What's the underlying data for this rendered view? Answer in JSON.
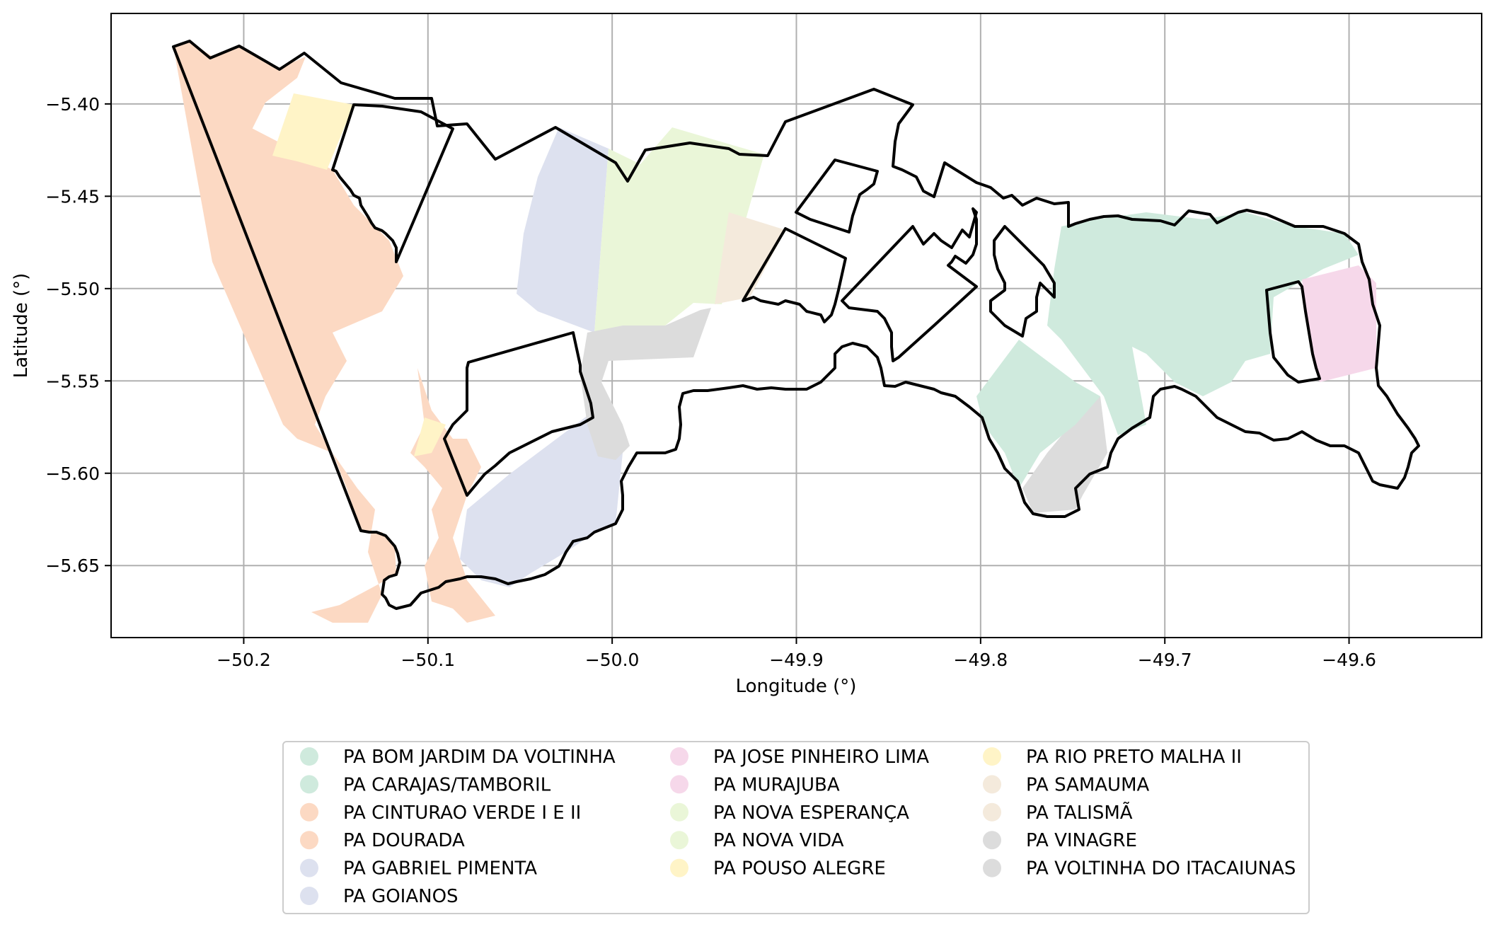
{
  "map": {
    "xlabel": "Longitude (°)",
    "ylabel": "Latitude (°)",
    "xlim": [
      -50.272,
      -49.528
    ],
    "ylim": [
      -5.689,
      -5.351
    ],
    "x_ticks": [
      {
        "value": -50.2,
        "label": "−50.2"
      },
      {
        "value": -50.1,
        "label": "−50.1"
      },
      {
        "value": -50.0,
        "label": "−50.0"
      },
      {
        "value": -49.9,
        "label": "−49.9"
      },
      {
        "value": -49.8,
        "label": "−49.8"
      },
      {
        "value": -49.7,
        "label": "−49.7"
      },
      {
        "value": -49.6,
        "label": "−49.6"
      }
    ],
    "y_ticks": [
      {
        "value": -5.4,
        "label": "−5.40"
      },
      {
        "value": -5.45,
        "label": "−5.45"
      },
      {
        "value": -5.5,
        "label": "−5.50"
      },
      {
        "value": -5.55,
        "label": "−5.55"
      },
      {
        "value": -5.6,
        "label": "−5.60"
      },
      {
        "value": -5.65,
        "label": "−5.65"
      }
    ],
    "grid": true,
    "legend_position": "below",
    "boundary_color": "#000000"
  },
  "legend": {
    "items": [
      {
        "label": "PA BOM JARDIM DA VOLTINHA",
        "color": "#cfeadd"
      },
      {
        "label": "PA CARAJAS/TAMBORIL",
        "color": "#cfeadd"
      },
      {
        "label": "PA CINTURAO VERDE I E II",
        "color": "#fcd9c3"
      },
      {
        "label": "PA DOURADA",
        "color": "#fcd9c3"
      },
      {
        "label": "PA GABRIEL PIMENTA",
        "color": "#dde1ef"
      },
      {
        "label": "PA GOIANOS",
        "color": "#dde1ef"
      },
      {
        "label": "PA JOSE PINHEIRO LIMA",
        "color": "#f6d8ea"
      },
      {
        "label": "PA MURAJUBA",
        "color": "#f6d8ea"
      },
      {
        "label": "PA NOVA ESPERANÇA",
        "color": "#eaf6d8"
      },
      {
        "label": "PA NOVA VIDA",
        "color": "#eaf6d8"
      },
      {
        "label": "PA POUSO ALEGRE",
        "color": "#fff4c7"
      },
      {
        "label": "PA RIO PRETO MALHA II",
        "color": "#fff4c7"
      },
      {
        "label": "PA SAMAUMA",
        "color": "#f4eadc"
      },
      {
        "label": "PA TALISMÃ",
        "color": "#f4eadc"
      },
      {
        "label": "PA VINAGRE",
        "color": "#dcdcdc"
      },
      {
        "label": "PA VOLTINHA DO ITACAIUNAS",
        "color": "#dcdcdc"
      }
    ]
  }
}
